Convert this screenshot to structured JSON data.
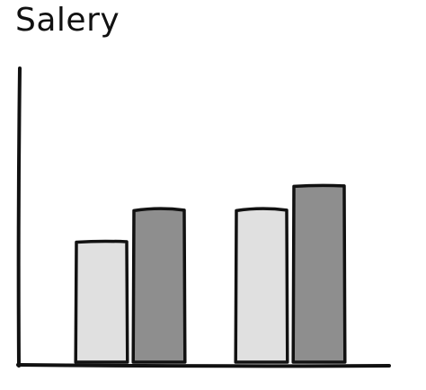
{
  "chart_data": {
    "type": "bar",
    "title": "Salery",
    "categories": [
      "",
      ""
    ],
    "series": [
      {
        "values": [
          5.0,
          6.3
        ],
        "color": "#e0e0e0"
      },
      {
        "values": [
          6.3,
          7.3
        ],
        "color": "#8e8e8e"
      }
    ],
    "ylim": [
      0,
      10
    ],
    "xlabel": "",
    "ylabel": "",
    "grid": false,
    "colors": {
      "axis": "#111111",
      "bar_outline": "#111111"
    }
  }
}
